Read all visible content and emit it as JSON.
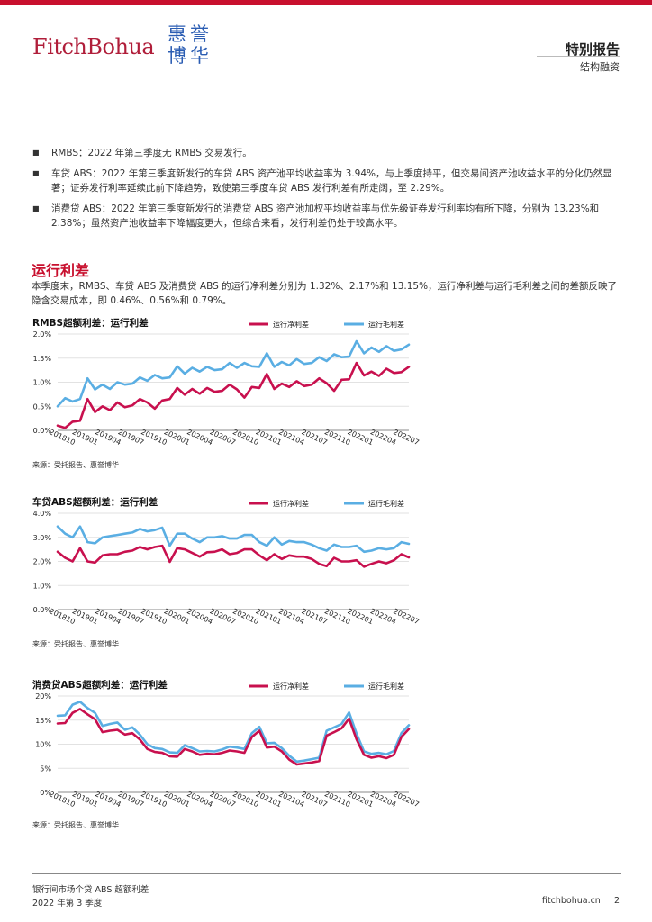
{
  "header": {
    "logo_text": "FitchBohua",
    "logo_cn": "惠誉博华",
    "title": "特别报告",
    "subtitle": "结构融资"
  },
  "bullets": [
    "RMBS：2022 年第三季度无 RMBS 交易发行。",
    "车贷 ABS：2022 年第三季度新发行的车贷 ABS 资产池平均收益率为 3.94%，与上季度持平，但交易间资产池收益水平的分化仍然显著；证券发行利率延续此前下降趋势，致使第三季度车贷 ABS 发行利差有所走阔，至 2.29%。",
    "消费贷 ABS：2022 年第三季度新发行的消费贷 ABS 资产池加权平均收益率与优先级证券发行利率均有所下降，分别为 13.23%和 2.38%；虽然资产池收益率下降幅度更大，但综合来看，发行利差仍处于较高水平。"
  ],
  "section": {
    "title": "运行利差",
    "body": "本季度末，RMBS、车贷 ABS 及消费贷 ABS 的运行净利差分别为 1.32%、2.17%和 13.15%，运行净利差与运行毛利差之间的差额反映了隐含交易成本，即 0.46%、0.56%和 0.79%。"
  },
  "source_text": "来源：受托报告、惠誉博华",
  "colors": {
    "net": "#c8104e",
    "gross": "#5aaee3",
    "brand": "#c8102e"
  },
  "chart_data": [
    {
      "type": "line",
      "title": "RMBS超额利差：运行利差",
      "categories_labeled": [
        "201810",
        "201901",
        "201904",
        "201907",
        "201910",
        "202001",
        "202004",
        "202007",
        "202010",
        "202101",
        "202104",
        "202107",
        "202110",
        "202201",
        "202204",
        "202207"
      ],
      "x_start": "2018-10",
      "x_end": "2022-09",
      "ylim": [
        0,
        2.0
      ],
      "yticks": [
        "0.0%",
        "0.5%",
        "1.0%",
        "1.5%",
        "2.0%"
      ],
      "legend_position": "top-right",
      "series": [
        {
          "name": "运行净利差",
          "color": "#c8104e",
          "values": [
            0.1,
            0.05,
            0.18,
            0.2,
            0.65,
            0.38,
            0.5,
            0.42,
            0.58,
            0.48,
            0.52,
            0.65,
            0.58,
            0.45,
            0.62,
            0.65,
            0.88,
            0.74,
            0.86,
            0.76,
            0.88,
            0.8,
            0.82,
            0.95,
            0.85,
            0.68,
            0.9,
            0.88,
            1.17,
            0.86,
            0.97,
            0.9,
            1.02,
            0.92,
            0.95,
            1.08,
            0.98,
            0.82,
            1.05,
            1.06,
            1.4,
            1.14,
            1.22,
            1.13,
            1.28,
            1.19,
            1.21,
            1.32
          ]
        },
        {
          "name": "运行毛利差",
          "color": "#5aaee3",
          "values": [
            0.5,
            0.67,
            0.6,
            0.65,
            1.08,
            0.85,
            0.95,
            0.86,
            1.0,
            0.95,
            0.97,
            1.1,
            1.03,
            1.15,
            1.08,
            1.1,
            1.33,
            1.18,
            1.3,
            1.22,
            1.32,
            1.25,
            1.27,
            1.4,
            1.3,
            1.4,
            1.33,
            1.32,
            1.6,
            1.32,
            1.42,
            1.35,
            1.48,
            1.38,
            1.4,
            1.52,
            1.44,
            1.58,
            1.52,
            1.53,
            1.85,
            1.6,
            1.72,
            1.63,
            1.75,
            1.65,
            1.68,
            1.78
          ]
        }
      ]
    },
    {
      "type": "line",
      "title": "车贷ABS超额利差：运行利差",
      "categories_labeled": [
        "201810",
        "201901",
        "201904",
        "201907",
        "201910",
        "202001",
        "202004",
        "202007",
        "202010",
        "202101",
        "202104",
        "202107",
        "202110",
        "202201",
        "202204",
        "202207"
      ],
      "x_start": "2018-10",
      "x_end": "2022-09",
      "ylim": [
        0,
        4.0
      ],
      "yticks": [
        "0.0%",
        "1.0%",
        "2.0%",
        "3.0%",
        "4.0%"
      ],
      "legend_position": "top-right",
      "series": [
        {
          "name": "运行净利差",
          "color": "#c8104e",
          "values": [
            2.4,
            2.15,
            2.0,
            2.55,
            2.0,
            1.95,
            2.25,
            2.3,
            2.3,
            2.4,
            2.45,
            2.6,
            2.5,
            2.6,
            2.65,
            1.98,
            2.55,
            2.5,
            2.35,
            2.2,
            2.38,
            2.4,
            2.5,
            2.3,
            2.35,
            2.5,
            2.5,
            2.25,
            2.05,
            2.3,
            2.1,
            2.25,
            2.2,
            2.2,
            2.1,
            1.9,
            1.8,
            2.15,
            2.0,
            2.0,
            2.05,
            1.78,
            1.9,
            2.0,
            1.92,
            2.05,
            2.3,
            2.17
          ]
        },
        {
          "name": "运行毛利差",
          "color": "#5aaee3",
          "values": [
            3.45,
            3.15,
            3.0,
            3.45,
            2.8,
            2.75,
            3.0,
            3.05,
            3.1,
            3.15,
            3.2,
            3.35,
            3.25,
            3.3,
            3.4,
            2.65,
            3.15,
            3.15,
            2.95,
            2.8,
            3.0,
            3.0,
            3.05,
            2.95,
            2.95,
            3.1,
            3.1,
            2.8,
            2.65,
            3.0,
            2.7,
            2.85,
            2.8,
            2.8,
            2.7,
            2.55,
            2.45,
            2.7,
            2.6,
            2.6,
            2.65,
            2.4,
            2.45,
            2.55,
            2.5,
            2.55,
            2.8,
            2.73
          ]
        }
      ]
    },
    {
      "type": "line",
      "title": "消费贷ABS超额利差：运行利差",
      "categories_labeled": [
        "201810",
        "201901",
        "201904",
        "201907",
        "201910",
        "202001",
        "202004",
        "202007",
        "202010",
        "202101",
        "202104",
        "202107",
        "202110",
        "202201",
        "202204",
        "202207"
      ],
      "x_start": "2018-10",
      "x_end": "2022-09",
      "ylim": [
        0,
        20
      ],
      "yticks": [
        "0%",
        "5%",
        "10%",
        "15%",
        "20%"
      ],
      "legend_position": "top-right",
      "series": [
        {
          "name": "运行净利差",
          "color": "#c8104e",
          "values": [
            14.3,
            14.4,
            16.5,
            17.3,
            16.2,
            15.2,
            12.5,
            12.8,
            13.0,
            12.0,
            12.3,
            11.0,
            9.0,
            8.4,
            8.2,
            7.5,
            7.4,
            9.0,
            8.5,
            7.8,
            8.0,
            7.9,
            8.2,
            8.7,
            8.5,
            8.2,
            11.5,
            12.8,
            9.3,
            9.5,
            8.5,
            6.8,
            5.8,
            6.0,
            6.2,
            6.5,
            11.8,
            12.5,
            13.3,
            15.3,
            11.0,
            7.8,
            7.2,
            7.5,
            7.1,
            7.8,
            11.5,
            13.15
          ]
        },
        {
          "name": "运行毛利差",
          "color": "#5aaee3",
          "values": [
            15.9,
            16.0,
            18.2,
            18.8,
            17.5,
            16.5,
            13.8,
            14.2,
            14.5,
            13.0,
            13.5,
            12.0,
            10.0,
            9.2,
            9.0,
            8.3,
            8.2,
            9.8,
            9.2,
            8.5,
            8.6,
            8.5,
            8.9,
            9.5,
            9.3,
            9.0,
            12.3,
            13.6,
            10.2,
            10.3,
            9.2,
            7.6,
            6.4,
            6.6,
            6.9,
            7.2,
            12.8,
            13.5,
            14.2,
            16.6,
            12.2,
            8.5,
            8.0,
            8.2,
            7.9,
            8.6,
            12.3,
            13.94
          ]
        }
      ]
    }
  ],
  "footer": {
    "line1": "银行间市场个贷 ABS 超额利差",
    "line2": "2022 年第 3 季度",
    "site": "fitchbohua.cn",
    "page": "2"
  }
}
